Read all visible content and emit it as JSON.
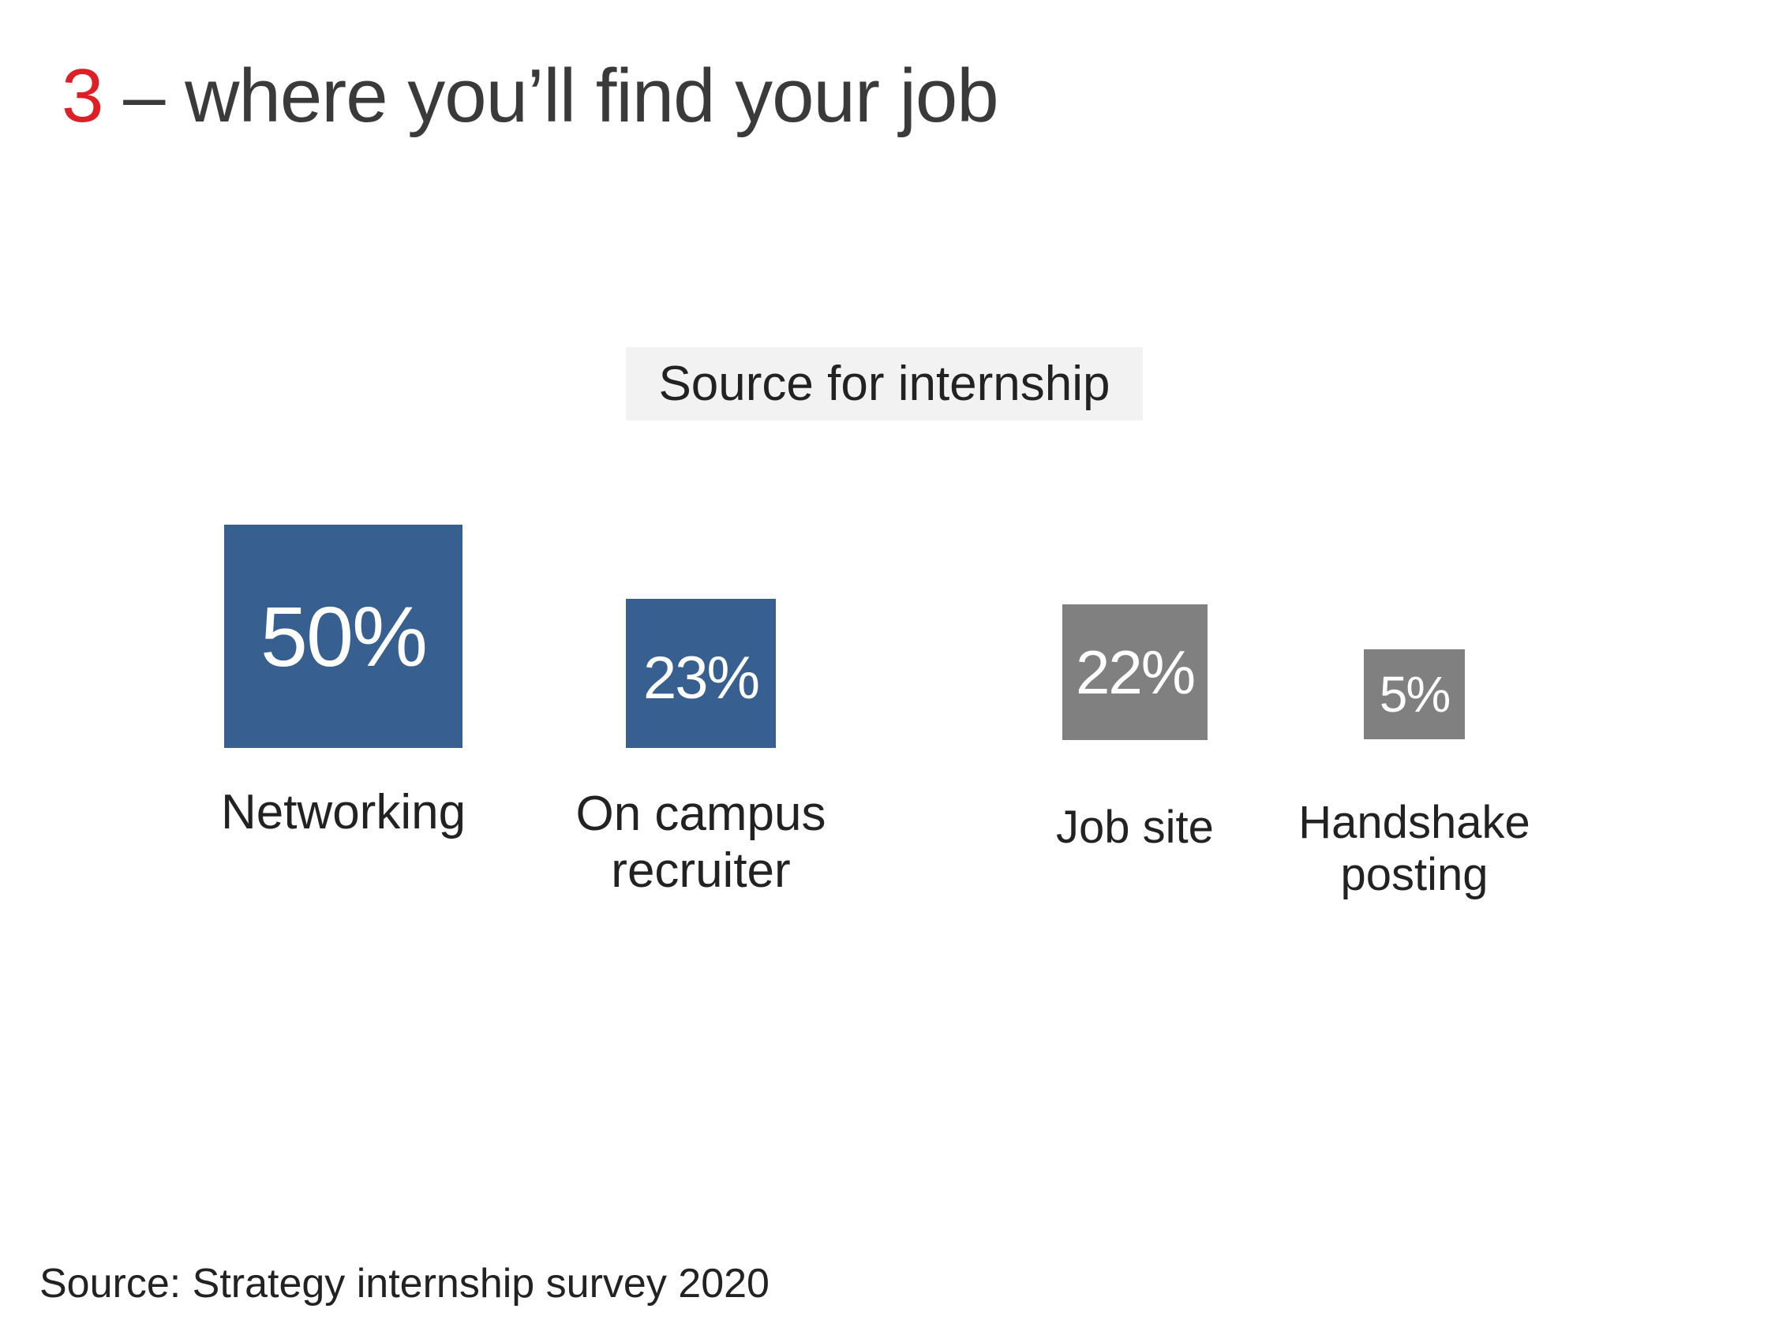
{
  "slide": {
    "title_number": "3",
    "title_text": " – where you’ll find your job",
    "source_note": "Source:  Strategy internship survey 2020"
  },
  "chart_data": {
    "type": "bar",
    "title": "Source for internship",
    "categories": [
      "Networking",
      "On campus\nrecruiter",
      "Job site",
      "Handshake\nposting"
    ],
    "values": [
      50,
      23,
      22,
      5
    ],
    "value_labels": [
      "50%",
      "23%",
      "22%",
      "5%"
    ],
    "colors": [
      "#375f8f",
      "#375f8f",
      "#808080",
      "#808080"
    ],
    "unit": "%"
  }
}
